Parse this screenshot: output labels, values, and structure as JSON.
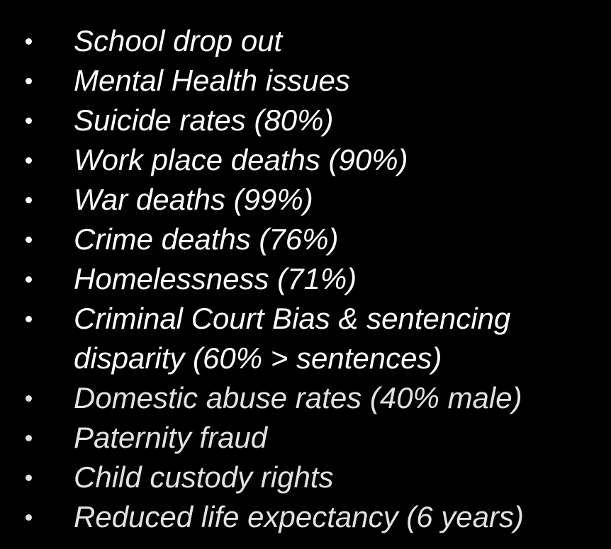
{
  "colors": {
    "background": "#000000",
    "text_primary": "#ffffff",
    "text_dim": "#e2e2e2"
  },
  "bullets": [
    {
      "icon": "bullet-dot",
      "lines": [
        "School drop out"
      ]
    },
    {
      "icon": "bullet-dot",
      "lines": [
        "Mental Health issues"
      ]
    },
    {
      "icon": "bullet-dot",
      "lines": [
        "Suicide rates (80%)"
      ]
    },
    {
      "icon": "bullet-dot",
      "lines": [
        "Work place deaths (90%)"
      ]
    },
    {
      "icon": "bullet-dot",
      "lines": [
        "War deaths (99%)"
      ]
    },
    {
      "icon": "bullet-dot",
      "lines": [
        "Crime deaths (76%)"
      ]
    },
    {
      "icon": "bullet-dot",
      "lines": [
        "Homelessness (71%)"
      ]
    },
    {
      "icon": "bullet-dot",
      "lines": [
        "Criminal Court Bias & sentencing",
        "disparity (60% > sentences)"
      ]
    },
    {
      "icon": "bullet-dot",
      "lines": [
        "Domestic abuse rates (40% male)"
      ]
    },
    {
      "icon": "bullet-dot",
      "lines": [
        "Paternity fraud"
      ]
    },
    {
      "icon": "bullet-dot",
      "lines": [
        "Child custody rights"
      ]
    },
    {
      "icon": "bullet-dot",
      "lines": [
        "Reduced life expectancy (6 years)"
      ]
    }
  ]
}
